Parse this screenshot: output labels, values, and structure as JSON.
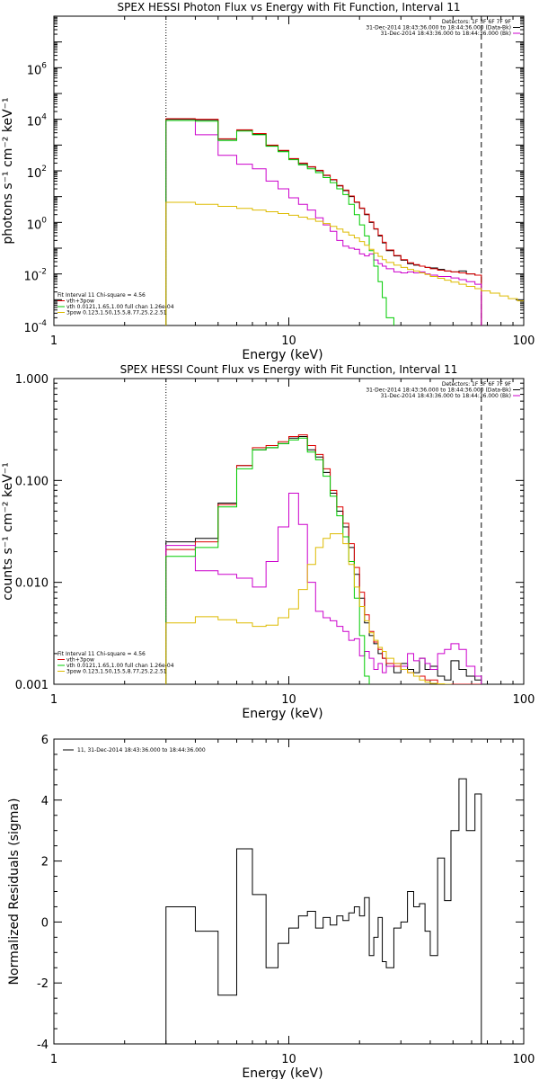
{
  "chart_data": [
    {
      "type": "line",
      "title": "SPEX HESSI Photon Flux vs Energy with Fit Function, Interval 11",
      "xlabel": "Energy (keV)",
      "ylabel": "photons s⁻¹ cm⁻² keV⁻¹",
      "xscale": "log",
      "yscale": "log",
      "xlim": [
        1,
        100
      ],
      "ylim": [
        0.0001,
        100000000
      ],
      "x_tick_labels": [
        "1",
        "10",
        "100"
      ],
      "y_tick_labels": [
        {
          "base": "10",
          "exp": "-4"
        },
        {
          "base": "10",
          "exp": "-2"
        },
        {
          "base": "10",
          "exp": "0"
        },
        {
          "base": "10",
          "exp": "2"
        },
        {
          "base": "10",
          "exp": "4"
        },
        {
          "base": "10",
          "exp": "6"
        }
      ],
      "legend_right": [
        {
          "text": "Detectors: 1F 3F 6F 7F 9F",
          "color": ""
        },
        {
          "text": "31-Dec-2014 18:43:36.000 to 18:44:36.000 (Data-Bk)",
          "color": "#000000"
        },
        {
          "text": "31-Dec-2014 18:43:36.000 to 18:44:36.000 (Bk)",
          "color": "#cc00cc"
        }
      ],
      "legend_left": [
        {
          "text": "Fit Interval 11    Chi-square = 4.56",
          "color": ""
        },
        {
          "text": "vth+3pow",
          "color": "#dd0000"
        },
        {
          "text": "vth 0.0121,1.65,1.00  full chan 1.26e-04",
          "color": "#00cc00"
        },
        {
          "text": "3pow 0.123,1.50,15.5,8.77,25.2,2.51",
          "color": "#ddbb00"
        }
      ],
      "vlines": [
        3,
        66
      ],
      "series": [
        {
          "name": "Data-Bk",
          "color": "#000000",
          "edges": [
            3,
            4,
            5,
            6,
            7,
            8,
            9,
            10,
            11,
            12,
            13,
            14,
            15,
            16,
            17,
            18,
            19,
            20,
            21,
            22,
            23,
            24,
            25,
            26,
            28,
            30,
            32,
            34,
            36,
            38,
            40,
            43,
            46,
            49,
            53,
            57,
            62,
            66
          ],
          "values": [
            10000,
            9500,
            1700,
            3800,
            2700,
            950,
            600,
            290,
            190,
            140,
            100,
            66,
            45,
            26,
            17,
            10,
            6,
            3.5,
            2,
            1,
            0.55,
            0.3,
            0.16,
            0.08,
            0.05,
            0.034,
            0.025,
            0.022,
            0.02,
            0.018,
            0.017,
            0.015,
            0.013,
            0.012,
            0.013,
            0.01,
            0.009
          ]
        },
        {
          "name": "vth+3pow",
          "color": "#dd0000",
          "edges": [
            3,
            4,
            5,
            6,
            7,
            8,
            9,
            10,
            11,
            12,
            13,
            14,
            15,
            16,
            17,
            18,
            19,
            20,
            21,
            22,
            23,
            24,
            25,
            26,
            28,
            30,
            32,
            34,
            36,
            38,
            40,
            43,
            46,
            49,
            53,
            57,
            62,
            66
          ],
          "values": [
            10500,
            10000,
            1750,
            3900,
            2800,
            1000,
            620,
            300,
            200,
            145,
            105,
            68,
            46,
            27,
            18,
            10.5,
            6.2,
            3.6,
            2.1,
            1.05,
            0.57,
            0.32,
            0.17,
            0.085,
            0.052,
            0.036,
            0.027,
            0.023,
            0.02,
            0.018,
            0.016,
            0.014,
            0.013,
            0.012,
            0.011,
            0.01,
            0.009
          ]
        },
        {
          "name": "Bk",
          "color": "#cc00cc",
          "edges": [
            3,
            4,
            5,
            6,
            7,
            8,
            9,
            10,
            11,
            12,
            13,
            14,
            15,
            16,
            17,
            18,
            19,
            20,
            21,
            22,
            23,
            24,
            25,
            26,
            28,
            30,
            32,
            34,
            36,
            38,
            40,
            43,
            46,
            49,
            53,
            57,
            62,
            66
          ],
          "values": [
            9000,
            2500,
            400,
            180,
            120,
            40,
            20,
            9,
            5,
            3,
            1.5,
            0.8,
            0.45,
            0.2,
            0.12,
            0.1,
            0.09,
            0.06,
            0.05,
            0.06,
            0.035,
            0.025,
            0.02,
            0.016,
            0.012,
            0.011,
            0.012,
            0.011,
            0.012,
            0.01,
            0.009,
            0.008,
            0.008,
            0.007,
            0.006,
            0.005,
            0.004
          ]
        },
        {
          "name": "vth",
          "color": "#00cc00",
          "edges": [
            3,
            4,
            5,
            6,
            7,
            8,
            9,
            10,
            11,
            12,
            13,
            14,
            15,
            16,
            17,
            18,
            19,
            20,
            21,
            22,
            23,
            24,
            25,
            26,
            28,
            30
          ],
          "values": [
            9000,
            8500,
            1500,
            3500,
            2500,
            900,
            550,
            270,
            170,
            120,
            85,
            55,
            35,
            20,
            12,
            5,
            2,
            0.8,
            0.3,
            0.08,
            0.02,
            0.005,
            0.0012,
            0.0002,
            7e-05
          ]
        },
        {
          "name": "3pow",
          "color": "#ddbb00",
          "edges": [
            3,
            4,
            5,
            6,
            7,
            8,
            9,
            10,
            11,
            12,
            13,
            14,
            15,
            16,
            17,
            18,
            19,
            20,
            21,
            22,
            23,
            24,
            25,
            26,
            28,
            30,
            32,
            34,
            36,
            38,
            40,
            43,
            46,
            49,
            53,
            57,
            62,
            66,
            72,
            79,
            86,
            94,
            100
          ],
          "values": [
            6,
            5,
            4.2,
            3.5,
            3,
            2.6,
            2.2,
            1.9,
            1.6,
            1.35,
            1.1,
            0.9,
            0.7,
            0.55,
            0.42,
            0.32,
            0.25,
            0.18,
            0.13,
            0.09,
            0.065,
            0.048,
            0.036,
            0.028,
            0.022,
            0.018,
            0.015,
            0.013,
            0.011,
            0.0095,
            0.008,
            0.0068,
            0.0057,
            0.0048,
            0.004,
            0.0033,
            0.0027,
            0.0022,
            0.0018,
            0.0014,
            0.0011,
            0.0009
          ]
        }
      ]
    },
    {
      "type": "line",
      "title": "SPEX HESSI Count Flux vs Energy with Fit Function, Interval 11",
      "xlabel": "Energy (keV)",
      "ylabel": "counts s⁻¹ cm⁻² keV⁻¹",
      "xscale": "log",
      "yscale": "log",
      "xlim": [
        1,
        100
      ],
      "ylim": [
        0.001,
        1
      ],
      "x_tick_labels": [
        "1",
        "10",
        "100"
      ],
      "y_tick_labels": [
        "0.001",
        "0.010",
        "0.100",
        "1.000"
      ],
      "legend_right": [
        {
          "text": "Detectors: 1F 3F 6F 7F 9F",
          "color": ""
        },
        {
          "text": "31-Dec-2014 18:43:36.000 to 18:44:36.000 (Data-Bk)",
          "color": "#000000"
        },
        {
          "text": "31-Dec-2014 18:43:36.000 to 18:44:36.000 (Bk)",
          "color": "#cc00cc"
        }
      ],
      "legend_left": [
        {
          "text": "Fit Interval 11    Chi-square = 4.56",
          "color": ""
        },
        {
          "text": "vth+3pow",
          "color": "#dd0000"
        },
        {
          "text": "vth 0.0121,1.65,1.00  full chan 1.26e-04",
          "color": "#00cc00"
        },
        {
          "text": "3pow 0.123,1.50,15.5,8.77,25.2,2.51",
          "color": "#ddbb00"
        }
      ],
      "vlines": [
        3,
        66
      ],
      "series": [
        {
          "name": "Data-Bk",
          "color": "#000000",
          "edges": [
            3,
            4,
            5,
            6,
            7,
            8,
            9,
            10,
            11,
            12,
            13,
            14,
            15,
            16,
            17,
            18,
            19,
            20,
            21,
            22,
            23,
            24,
            25,
            26,
            28,
            30,
            32,
            34,
            36,
            38,
            40,
            43,
            46,
            49,
            53,
            57,
            62,
            66
          ],
          "values": [
            0.025,
            0.027,
            0.06,
            0.14,
            0.2,
            0.21,
            0.23,
            0.26,
            0.27,
            0.2,
            0.17,
            0.12,
            0.075,
            0.05,
            0.035,
            0.022,
            0.012,
            0.007,
            0.004,
            0.003,
            0.0025,
            0.002,
            0.0018,
            0.0015,
            0.0013,
            0.0016,
            0.0014,
            0.0013,
            0.0018,
            0.0014,
            0.0015,
            0.0012,
            0.0011,
            0.0017,
            0.0014,
            0.0012,
            0.0011
          ]
        },
        {
          "name": "vth+3pow",
          "color": "#dd0000",
          "edges": [
            3,
            4,
            5,
            6,
            7,
            8,
            9,
            10,
            11,
            12,
            13,
            14,
            15,
            16,
            17,
            18,
            19,
            20,
            21,
            22,
            23,
            24,
            25,
            26,
            28,
            30,
            32,
            34,
            36,
            38,
            40,
            43,
            46,
            49,
            53,
            57,
            62,
            66
          ],
          "values": [
            0.021,
            0.025,
            0.058,
            0.14,
            0.21,
            0.22,
            0.24,
            0.27,
            0.28,
            0.22,
            0.18,
            0.13,
            0.08,
            0.055,
            0.038,
            0.024,
            0.014,
            0.008,
            0.0048,
            0.0033,
            0.0026,
            0.0022,
            0.0018,
            0.0016,
            0.0015,
            0.0014,
            0.0013,
            0.0012,
            0.0012,
            0.0011,
            0.0011,
            0.001,
            0.001,
            0.001,
            0.001,
            0.001,
            0.001
          ]
        },
        {
          "name": "Bk",
          "color": "#cc00cc",
          "edges": [
            3,
            4,
            5,
            6,
            7,
            8,
            9,
            10,
            11,
            12,
            13,
            14,
            15,
            16,
            17,
            18,
            19,
            20,
            21,
            22,
            23,
            24,
            25,
            26,
            28,
            30,
            32,
            34,
            36,
            38,
            40,
            43,
            46,
            49,
            53,
            57,
            62,
            66
          ],
          "values": [
            0.023,
            0.013,
            0.012,
            0.011,
            0.009,
            0.016,
            0.035,
            0.075,
            0.037,
            0.01,
            0.0052,
            0.0045,
            0.0042,
            0.0037,
            0.0033,
            0.0027,
            0.0028,
            0.0019,
            0.0021,
            0.0018,
            0.0014,
            0.0016,
            0.0013,
            0.0015,
            0.0016,
            0.0015,
            0.002,
            0.0017,
            0.0018,
            0.0016,
            0.0014,
            0.002,
            0.0022,
            0.0025,
            0.0022,
            0.0015,
            0.0012
          ]
        },
        {
          "name": "vth",
          "color": "#00cc00",
          "edges": [
            3,
            4,
            5,
            6,
            7,
            8,
            9,
            10,
            11,
            12,
            13,
            14,
            15,
            16,
            17,
            18,
            19,
            20,
            21,
            22
          ],
          "values": [
            0.018,
            0.022,
            0.055,
            0.13,
            0.2,
            0.21,
            0.23,
            0.25,
            0.26,
            0.19,
            0.16,
            0.11,
            0.07,
            0.045,
            0.028,
            0.016,
            0.007,
            0.003,
            0.0012
          ]
        },
        {
          "name": "3pow",
          "color": "#ddbb00",
          "edges": [
            3,
            4,
            5,
            6,
            7,
            8,
            9,
            10,
            11,
            12,
            13,
            14,
            15,
            16,
            17,
            18,
            19,
            20,
            21,
            22,
            23,
            24,
            25,
            26,
            28,
            30,
            32,
            34,
            36,
            38,
            40,
            43,
            46,
            49
          ],
          "values": [
            0.004,
            0.0046,
            0.0043,
            0.004,
            0.0037,
            0.0038,
            0.0045,
            0.0055,
            0.0085,
            0.015,
            0.022,
            0.027,
            0.03,
            0.03,
            0.024,
            0.015,
            0.009,
            0.0058,
            0.0042,
            0.0032,
            0.0027,
            0.0023,
            0.0021,
            0.0018,
            0.0016,
            0.0014,
            0.0013,
            0.0012,
            0.0011,
            0.00105,
            0.00102,
            0.00101,
            0.001
          ]
        }
      ]
    },
    {
      "type": "line",
      "title": "",
      "xlabel": "Energy (keV)",
      "ylabel": "Normalized Residuals (sigma)",
      "xscale": "log",
      "yscale": "linear",
      "xlim": [
        1,
        100
      ],
      "ylim": [
        -4,
        6
      ],
      "x_tick_labels": [
        "1",
        "10",
        "100"
      ],
      "y_tick_labels": [
        "-4",
        "-2",
        "0",
        "2",
        "4",
        "6"
      ],
      "legend_left": [
        {
          "text": "11, 31-Dec-2014 18:43:36.000 to 18:44:36.000",
          "color": "#000000"
        }
      ],
      "series": [
        {
          "name": "11, 31-Dec-2014 18:43:36.000 to 18:44:36.000",
          "color": "#000000",
          "edges": [
            3,
            4,
            5,
            6,
            7,
            8,
            9,
            10,
            11,
            12,
            13,
            14,
            15,
            16,
            17,
            18,
            19,
            20,
            21,
            22,
            23,
            24,
            25,
            26,
            28,
            30,
            32,
            34,
            36,
            38,
            40,
            43,
            46,
            49,
            53,
            57,
            62,
            66
          ],
          "values": [
            0.5,
            -0.3,
            -2.4,
            2.4,
            0.9,
            -1.5,
            -0.7,
            -0.2,
            0.2,
            0.35,
            -0.2,
            0.15,
            -0.1,
            0.2,
            0.05,
            0.3,
            0.5,
            0.2,
            0.8,
            -1.1,
            -0.5,
            0.15,
            -1.3,
            -1.5,
            -0.2,
            0,
            1,
            0.5,
            0.6,
            -0.3,
            -1.1,
            2.1,
            0.7,
            3,
            4.7,
            3,
            4.2
          ]
        }
      ]
    }
  ]
}
